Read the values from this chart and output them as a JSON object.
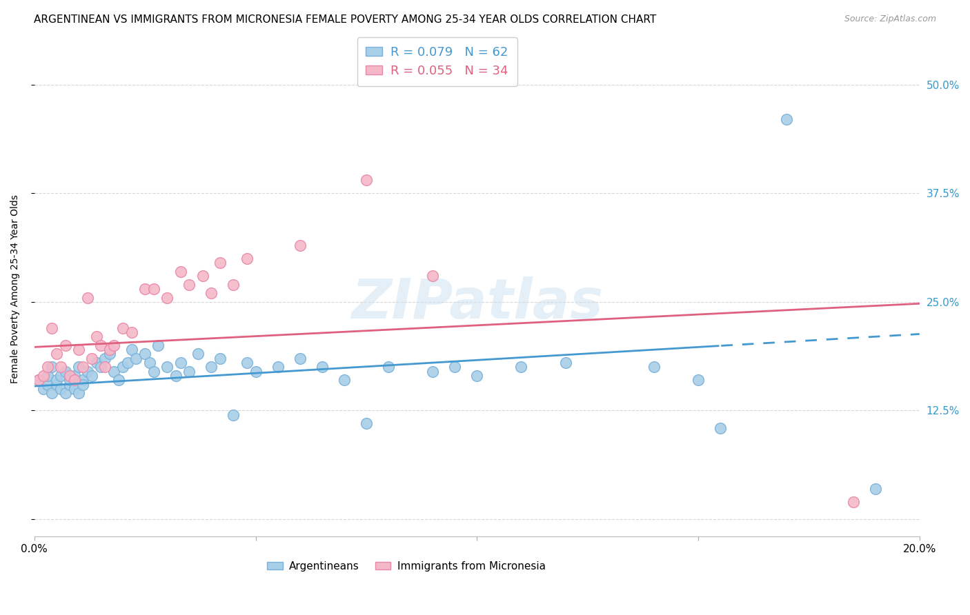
{
  "title": "ARGENTINEAN VS IMMIGRANTS FROM MICRONESIA FEMALE POVERTY AMONG 25-34 YEAR OLDS CORRELATION CHART",
  "source": "Source: ZipAtlas.com",
  "ylabel": "Female Poverty Among 25-34 Year Olds",
  "xlim": [
    0.0,
    0.2
  ],
  "ylim": [
    -0.02,
    0.55
  ],
  "yticks": [
    0.0,
    0.125,
    0.25,
    0.375,
    0.5
  ],
  "ytick_labels": [
    "",
    "12.5%",
    "25.0%",
    "37.5%",
    "50.0%"
  ],
  "xticks": [
    0.0,
    0.05,
    0.1,
    0.15,
    0.2
  ],
  "xtick_labels": [
    "0.0%",
    "",
    "",
    "",
    "20.0%"
  ],
  "legend_labels": [
    "Argentineans",
    "Immigrants from Micronesia"
  ],
  "series1_color": "#a8cfe8",
  "series2_color": "#f5b8c8",
  "series1_edge": "#7ab0d8",
  "series2_edge": "#e888a8",
  "line1_color": "#4499d0",
  "line2_color": "#e06080",
  "R1": 0.079,
  "N1": 62,
  "R2": 0.055,
  "N2": 34,
  "watermark": "ZIPatlas",
  "background_color": "#ffffff",
  "grid_color": "#cccccc",
  "title_fontsize": 11,
  "axis_fontsize": 10,
  "tick_fontsize": 11,
  "line1_intercept": 0.153,
  "line1_slope": 0.3,
  "line2_intercept": 0.198,
  "line2_slope": 0.25,
  "line1_solid_end": 0.155,
  "series1_x": [
    0.001,
    0.002,
    0.003,
    0.003,
    0.004,
    0.004,
    0.005,
    0.005,
    0.006,
    0.006,
    0.007,
    0.007,
    0.008,
    0.008,
    0.009,
    0.009,
    0.01,
    0.01,
    0.011,
    0.011,
    0.012,
    0.013,
    0.014,
    0.015,
    0.016,
    0.017,
    0.018,
    0.019,
    0.02,
    0.021,
    0.022,
    0.023,
    0.025,
    0.026,
    0.027,
    0.028,
    0.03,
    0.032,
    0.033,
    0.035,
    0.037,
    0.04,
    0.042,
    0.045,
    0.048,
    0.05,
    0.055,
    0.06,
    0.065,
    0.07,
    0.075,
    0.08,
    0.09,
    0.095,
    0.1,
    0.11,
    0.12,
    0.14,
    0.15,
    0.155,
    0.17,
    0.19
  ],
  "series1_y": [
    0.16,
    0.15,
    0.155,
    0.165,
    0.145,
    0.175,
    0.155,
    0.16,
    0.15,
    0.165,
    0.145,
    0.17,
    0.155,
    0.16,
    0.165,
    0.15,
    0.145,
    0.175,
    0.16,
    0.155,
    0.17,
    0.165,
    0.18,
    0.175,
    0.185,
    0.19,
    0.17,
    0.16,
    0.175,
    0.18,
    0.195,
    0.185,
    0.19,
    0.18,
    0.17,
    0.2,
    0.175,
    0.165,
    0.18,
    0.17,
    0.19,
    0.175,
    0.185,
    0.12,
    0.18,
    0.17,
    0.175,
    0.185,
    0.175,
    0.16,
    0.11,
    0.175,
    0.17,
    0.175,
    0.165,
    0.175,
    0.18,
    0.175,
    0.16,
    0.105,
    0.46,
    0.035
  ],
  "series2_x": [
    0.001,
    0.002,
    0.003,
    0.004,
    0.005,
    0.006,
    0.007,
    0.008,
    0.009,
    0.01,
    0.011,
    0.012,
    0.013,
    0.014,
    0.015,
    0.016,
    0.017,
    0.018,
    0.02,
    0.022,
    0.025,
    0.027,
    0.03,
    0.033,
    0.035,
    0.038,
    0.04,
    0.042,
    0.045,
    0.048,
    0.06,
    0.075,
    0.09,
    0.185
  ],
  "series2_y": [
    0.16,
    0.165,
    0.175,
    0.22,
    0.19,
    0.175,
    0.2,
    0.165,
    0.16,
    0.195,
    0.175,
    0.255,
    0.185,
    0.21,
    0.2,
    0.175,
    0.195,
    0.2,
    0.22,
    0.215,
    0.265,
    0.265,
    0.255,
    0.285,
    0.27,
    0.28,
    0.26,
    0.295,
    0.27,
    0.3,
    0.315,
    0.39,
    0.28,
    0.02
  ]
}
